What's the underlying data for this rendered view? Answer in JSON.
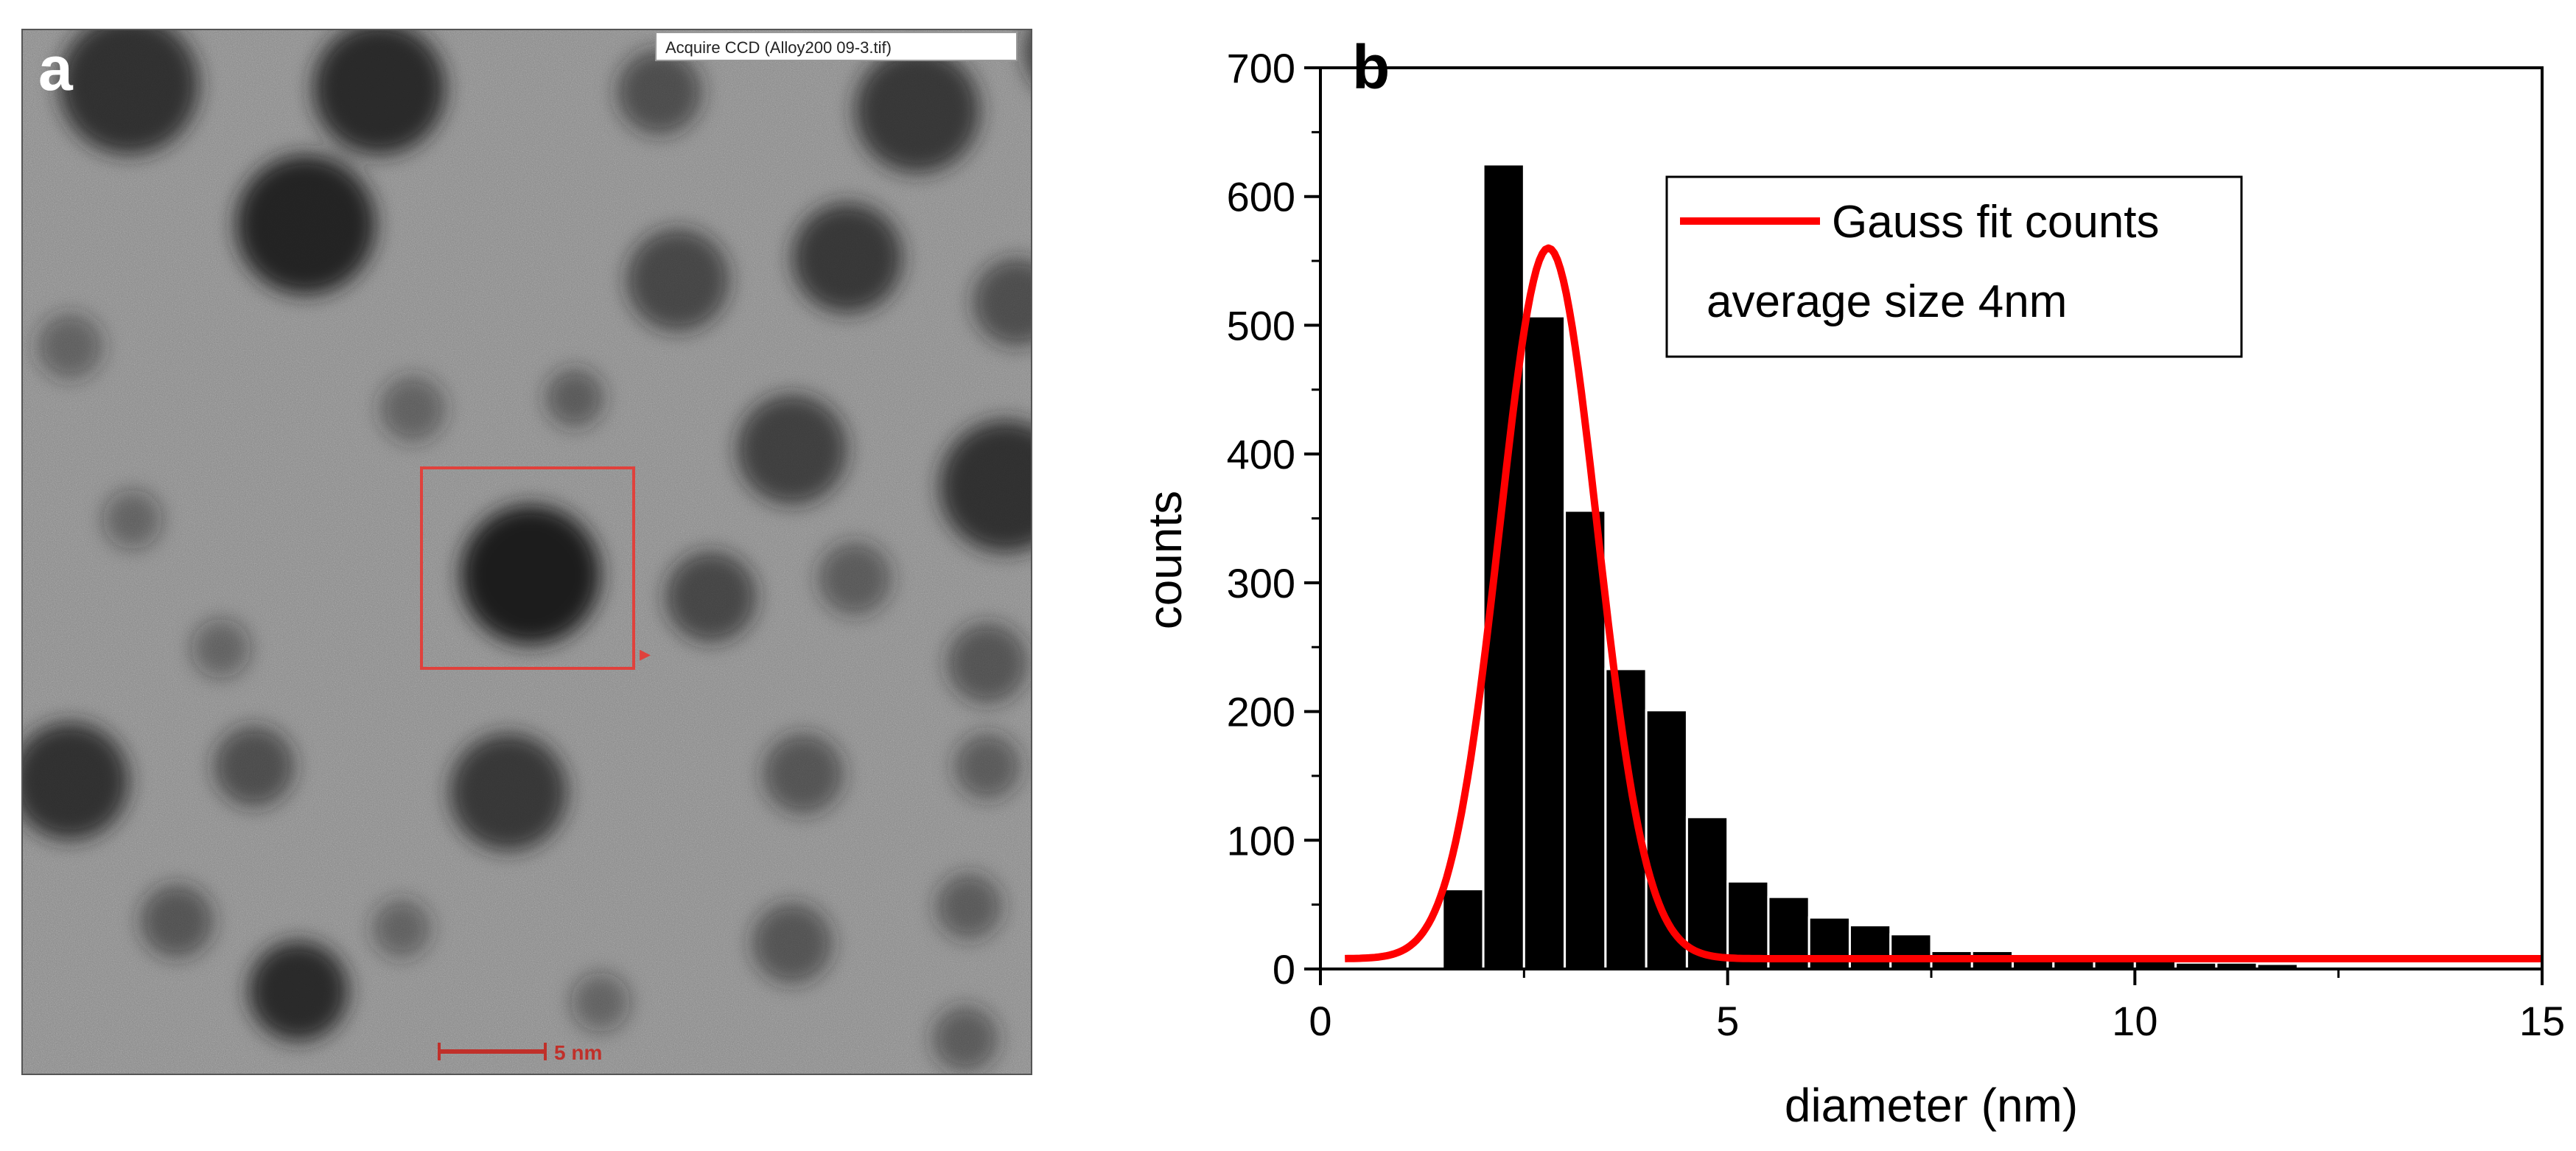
{
  "panel_a": {
    "label": "a",
    "banner_text": "Acquire CCD (Alloy200 09-3.tif)",
    "scale_bar_text": "5 nm",
    "colors": {
      "box": "#e0413c",
      "scalebar": "#c0302a"
    }
  },
  "chart_data": {
    "type": "bar",
    "panel_label": "b",
    "xlabel": "diameter (nm)",
    "ylabel": "counts",
    "xlim": [
      0,
      15
    ],
    "ylim": [
      0,
      700
    ],
    "xticks": [
      0,
      5,
      10,
      15
    ],
    "yticks": [
      0,
      100,
      200,
      300,
      400,
      500,
      600,
      700
    ],
    "bin_width": 0.5,
    "bins": [
      {
        "left": 1.5,
        "value": 62
      },
      {
        "left": 2.0,
        "value": 625
      },
      {
        "left": 2.5,
        "value": 507
      },
      {
        "left": 3.0,
        "value": 356
      },
      {
        "left": 3.5,
        "value": 233
      },
      {
        "left": 4.0,
        "value": 201
      },
      {
        "left": 4.5,
        "value": 118
      },
      {
        "left": 5.0,
        "value": 68
      },
      {
        "left": 5.5,
        "value": 56
      },
      {
        "left": 6.0,
        "value": 40
      },
      {
        "left": 6.5,
        "value": 34
      },
      {
        "left": 7.0,
        "value": 27
      },
      {
        "left": 7.5,
        "value": 14
      },
      {
        "left": 8.0,
        "value": 14
      },
      {
        "left": 8.5,
        "value": 8
      },
      {
        "left": 9.0,
        "value": 7
      },
      {
        "left": 9.5,
        "value": 6
      },
      {
        "left": 10.0,
        "value": 6
      },
      {
        "left": 10.5,
        "value": 5
      },
      {
        "left": 11.0,
        "value": 5
      },
      {
        "left": 11.5,
        "value": 4
      }
    ],
    "fit": {
      "name": "Gauss fit counts",
      "type": "gaussian",
      "y0": 8,
      "amplitude": 552,
      "center": 2.8,
      "sigma": 0.6,
      "x_range": [
        0.3,
        15
      ],
      "color": "#ff0000"
    },
    "legend": {
      "entries": [
        "Gauss fit counts"
      ],
      "note": "average size 4nm",
      "placement": "top-right"
    }
  }
}
